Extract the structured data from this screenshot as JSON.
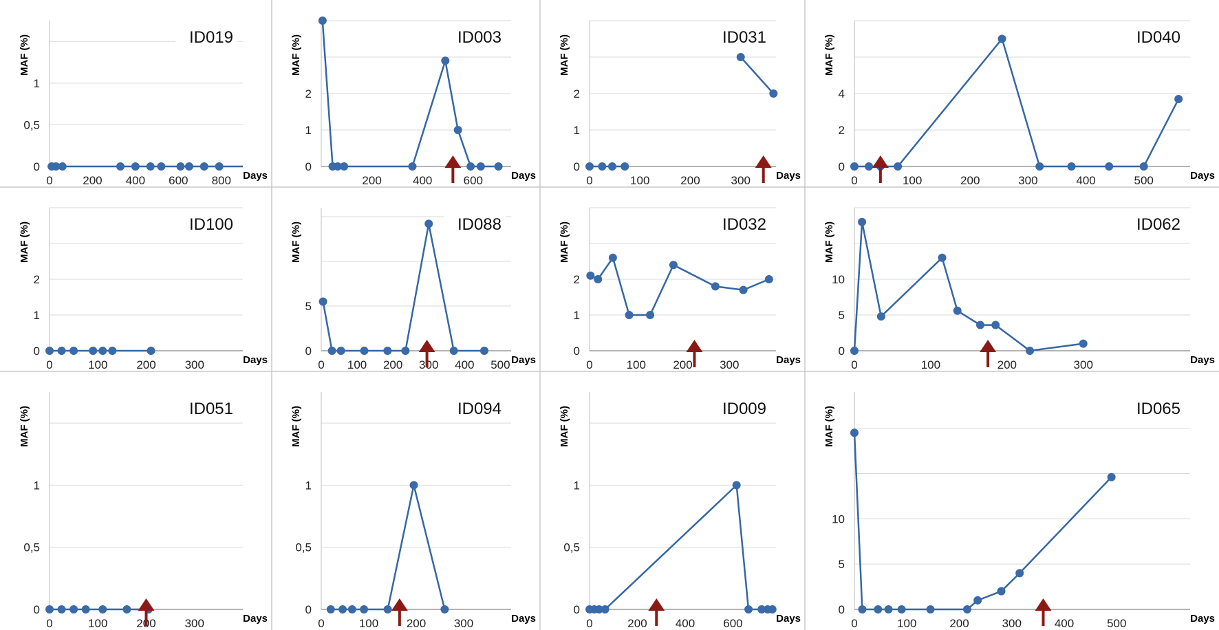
{
  "chart_data": [
    {
      "type": "line",
      "title": "ID019",
      "xlabel": "Days",
      "ylabel": "MAF (%)",
      "xlim": [
        0,
        900
      ],
      "ylim": [
        0,
        1.75
      ],
      "xticks": [
        0,
        200,
        400,
        600,
        800
      ],
      "yticks": [
        0,
        0.5,
        1
      ],
      "ytick_labels": [
        "0",
        "0,5",
        "1"
      ],
      "gridlines": [
        0,
        0.5,
        1,
        1.5
      ],
      "series": [
        {
          "x": [
            10,
            30,
            60,
            330,
            400,
            470,
            520,
            610,
            650,
            720,
            790
          ],
          "y": [
            0,
            0,
            0,
            0,
            0,
            0,
            0,
            0,
            0,
            0,
            0
          ],
          "trail_to": 900
        }
      ],
      "arrow_x": null
    },
    {
      "type": "line",
      "title": "ID003",
      "xlabel": "Days",
      "ylabel": "MAF (%)",
      "xlim": [
        0,
        750
      ],
      "ylim": [
        0,
        4
      ],
      "xticks": [
        200,
        400,
        600
      ],
      "yticks": [
        0,
        1,
        2
      ],
      "ytick_labels": [
        "0",
        "1",
        "2"
      ],
      "gridlines": [
        0,
        1,
        2,
        3,
        4
      ],
      "series": [
        {
          "x": [
            5,
            45,
            65,
            90,
            360,
            490,
            540,
            590,
            630,
            700
          ],
          "y": [
            4,
            0,
            0,
            0,
            0,
            2.9,
            1,
            0,
            0,
            0
          ]
        }
      ],
      "arrow_x": 520
    },
    {
      "type": "line",
      "title": "ID031",
      "xlabel": "Days",
      "ylabel": "MAF (%)",
      "xlim": [
        0,
        370
      ],
      "ylim": [
        0,
        4
      ],
      "xticks": [
        0,
        100,
        200,
        300
      ],
      "yticks": [
        0,
        1,
        2
      ],
      "ytick_labels": [
        "0",
        "1",
        "2"
      ],
      "gridlines": [
        0,
        1,
        2,
        3,
        4
      ],
      "series": [
        {
          "x": [
            0,
            25,
            45,
            70
          ],
          "y": [
            0,
            0,
            0,
            0
          ]
        },
        {
          "x": [
            300,
            365
          ],
          "y": [
            3,
            2
          ]
        }
      ],
      "arrow_x": 345
    },
    {
      "type": "line",
      "title": "ID040",
      "xlabel": "Days",
      "ylabel": "MAF (%)",
      "xlim": [
        0,
        580
      ],
      "ylim": [
        0,
        8
      ],
      "xticks": [
        0,
        100,
        200,
        300,
        400,
        500
      ],
      "yticks": [
        0,
        2,
        4
      ],
      "ytick_labels": [
        "0",
        "2",
        "4"
      ],
      "gridlines": [
        0,
        2,
        4,
        6,
        8
      ],
      "series": [
        {
          "x": [
            0,
            25,
            45,
            75,
            255,
            320,
            375,
            440,
            500,
            560
          ],
          "y": [
            0,
            0,
            0,
            0,
            7,
            0,
            0,
            0,
            0,
            3.7
          ]
        }
      ],
      "arrow_x": 45
    },
    {
      "type": "line",
      "title": "ID100",
      "xlabel": "Days",
      "ylabel": "MAF (%)",
      "xlim": [
        0,
        400
      ],
      "ylim": [
        0,
        4
      ],
      "xticks": [
        0,
        100,
        200,
        300
      ],
      "yticks": [
        0,
        1,
        2
      ],
      "ytick_labels": [
        "0",
        "1",
        "2"
      ],
      "gridlines": [
        0,
        1,
        2,
        3,
        4
      ],
      "series": [
        {
          "x": [
            0,
            25,
            50,
            90,
            110,
            130,
            210
          ],
          "y": [
            0,
            0,
            0,
            0,
            0,
            0,
            0
          ]
        }
      ],
      "arrow_x": null
    },
    {
      "type": "line",
      "title": "ID088",
      "xlabel": "Days",
      "ylabel": "MAF (%)",
      "xlim": [
        0,
        530
      ],
      "ylim": [
        0,
        16
      ],
      "xticks": [
        0,
        100,
        200,
        300,
        400,
        500
      ],
      "yticks": [
        0,
        5
      ],
      "ytick_labels": [
        "0",
        "5"
      ],
      "gridlines": [
        0,
        5,
        10,
        15
      ],
      "series": [
        {
          "x": [
            5,
            30,
            55,
            120,
            185,
            235,
            300,
            370,
            455
          ],
          "y": [
            5.5,
            0,
            0,
            0,
            0,
            0,
            14.2,
            0,
            0
          ]
        }
      ],
      "arrow_x": 295
    },
    {
      "type": "line",
      "title": "ID032",
      "xlabel": "Days",
      "ylabel": "MAF (%)",
      "xlim": [
        0,
        400
      ],
      "ylim": [
        0,
        4
      ],
      "xticks": [
        0,
        100,
        200,
        300
      ],
      "yticks": [
        0,
        1,
        2
      ],
      "ytick_labels": [
        "0",
        "1",
        "2"
      ],
      "gridlines": [
        0,
        1,
        2,
        3,
        4
      ],
      "series": [
        {
          "x": [
            2,
            18,
            50,
            85,
            130,
            180,
            270,
            330,
            385
          ],
          "y": [
            2.1,
            2,
            2.6,
            1,
            1,
            2.4,
            1.8,
            1.7,
            2
          ]
        }
      ],
      "arrow_x": 225
    },
    {
      "type": "line",
      "title": "ID062",
      "xlabel": "Days",
      "ylabel": "MAF (%)",
      "xlim": [
        0,
        440
      ],
      "ylim": [
        0,
        20
      ],
      "xticks": [
        0,
        100,
        200,
        300
      ],
      "yticks": [
        0,
        5,
        10
      ],
      "ytick_labels": [
        "0",
        "5",
        "10"
      ],
      "gridlines": [
        0,
        5,
        10,
        15,
        20
      ],
      "series": [
        {
          "x": [
            0,
            10,
            35,
            115,
            135,
            165,
            185,
            230,
            300
          ],
          "y": [
            0,
            18,
            4.8,
            13,
            5.6,
            3.6,
            3.6,
            0,
            1
          ]
        }
      ],
      "arrow_x": 175
    },
    {
      "type": "line",
      "title": "ID051",
      "xlabel": "Days",
      "ylabel": "MAF (%)",
      "xlim": [
        0,
        400
      ],
      "ylim": [
        0,
        1.75
      ],
      "xticks": [
        0,
        100,
        200,
        300
      ],
      "yticks": [
        0,
        0.5,
        1
      ],
      "ytick_labels": [
        "0",
        "0,5",
        "1"
      ],
      "gridlines": [
        0,
        0.5,
        1,
        1.5
      ],
      "series": [
        {
          "x": [
            0,
            25,
            50,
            75,
            110,
            160,
            205
          ],
          "y": [
            0,
            0,
            0,
            0,
            0,
            0,
            0
          ]
        }
      ],
      "arrow_x": 200
    },
    {
      "type": "line",
      "title": "ID094",
      "xlabel": "Days",
      "ylabel": "MAF (%)",
      "xlim": [
        0,
        400
      ],
      "ylim": [
        0,
        1.75
      ],
      "xticks": [
        0,
        100,
        200,
        300
      ],
      "yticks": [
        0,
        0.5,
        1
      ],
      "ytick_labels": [
        "0",
        "0,5",
        "1"
      ],
      "gridlines": [
        0,
        0.5,
        1,
        1.5
      ],
      "series": [
        {
          "x": [
            20,
            45,
            65,
            90,
            140,
            195,
            260
          ],
          "y": [
            0,
            0,
            0,
            0,
            0,
            1,
            0
          ]
        }
      ],
      "arrow_x": 165
    },
    {
      "type": "line",
      "title": "ID009",
      "xlabel": "Days",
      "ylabel": "MAF (%)",
      "xlim": [
        0,
        780
      ],
      "ylim": [
        0,
        1.75
      ],
      "xticks": [
        0,
        200,
        400,
        600
      ],
      "yticks": [
        0,
        0.5,
        1
      ],
      "ytick_labels": [
        "0",
        "0,5",
        "1"
      ],
      "gridlines": [
        0,
        0.5,
        1,
        1.5
      ],
      "series": [
        {
          "x": [
            0,
            20,
            40,
            65,
            615,
            665,
            720,
            745,
            765
          ],
          "y": [
            0,
            0,
            0,
            0,
            1,
            0,
            0,
            0,
            0
          ]
        }
      ],
      "arrow_x": 280
    },
    {
      "type": "line",
      "title": "ID065",
      "xlabel": "Days",
      "ylabel": "MAF (%)",
      "xlim": [
        0,
        640
      ],
      "ylim": [
        0,
        24
      ],
      "xticks": [
        0,
        100,
        200,
        300,
        400,
        500
      ],
      "yticks": [
        0,
        5,
        10
      ],
      "ytick_labels": [
        "0",
        "5",
        "10"
      ],
      "gridlines": [
        0,
        5,
        10,
        15,
        20
      ],
      "series": [
        {
          "x": [
            0,
            15,
            45,
            65,
            90,
            145,
            215,
            235,
            280,
            315,
            490
          ],
          "y": [
            19.5,
            0,
            0,
            0,
            0,
            0,
            0,
            1,
            2,
            4,
            14.6
          ]
        }
      ],
      "arrow_x": 360
    }
  ]
}
